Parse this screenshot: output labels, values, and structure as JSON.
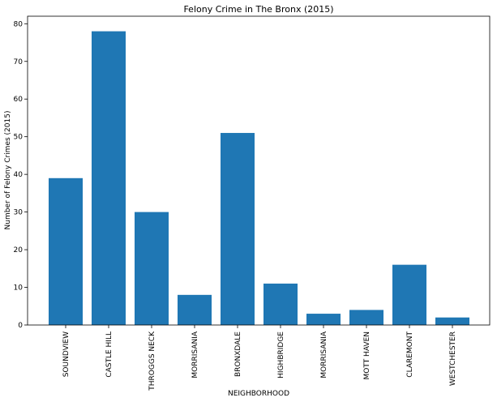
{
  "chart_data": {
    "type": "bar",
    "title": "Felony Crime in The Bronx (2015)",
    "xlabel": "NEIGHBORHOOD",
    "ylabel": "Number of Felony Crimes (2015)",
    "categories": [
      "SOUNDVIEW",
      "CASTLE HILL",
      "THROGGS NECK",
      "MORRISANIA",
      "BRONXDALE",
      "HIGHBRIDGE",
      "MORRISANIA",
      "MOTT HAVEN",
      "CLAREMONT",
      "WESTCHESTER"
    ],
    "values": [
      39,
      78,
      30,
      8,
      51,
      11,
      3,
      4,
      16,
      2
    ],
    "ylim": [
      0,
      82
    ],
    "yticks": [
      "0",
      "10",
      "20",
      "30",
      "40",
      "50",
      "60",
      "70",
      "80"
    ],
    "bar_color": "#1f77b4",
    "grid": false
  }
}
